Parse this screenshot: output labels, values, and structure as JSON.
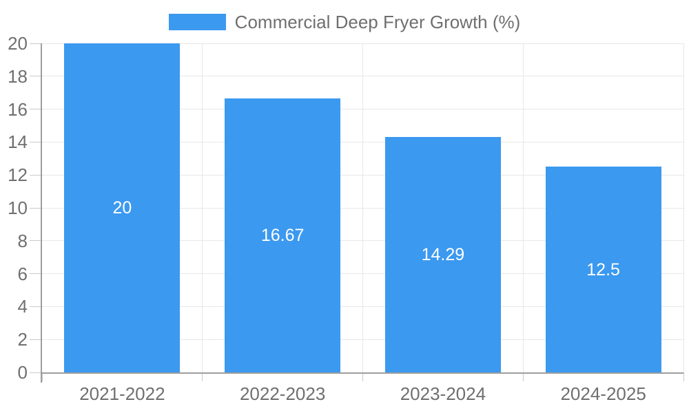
{
  "chart_data": {
    "type": "bar",
    "title": "",
    "legend": "Commercial Deep Fryer Growth (%)",
    "categories": [
      "2021-2022",
      "2022-2023",
      "2023-2024",
      "2024-2025"
    ],
    "values": [
      20,
      16.67,
      14.29,
      12.5
    ],
    "value_labels": [
      "20",
      "16.67",
      "14.29",
      "12.5"
    ],
    "xlabel": "",
    "ylabel": "",
    "ylim": [
      0,
      20
    ],
    "ytick_step": 2,
    "yticks": [
      0,
      2,
      4,
      6,
      8,
      10,
      12,
      14,
      16,
      18,
      20
    ],
    "grid": true,
    "legend_position": "top"
  },
  "colors": {
    "bar": "#3b99f0",
    "text": "#6f6f6f",
    "value_label": "#ffffff",
    "grid": "#e7e7e7",
    "tick": "#c9c9c9",
    "axis": "#9e9e9e",
    "background": "#ffffff"
  }
}
